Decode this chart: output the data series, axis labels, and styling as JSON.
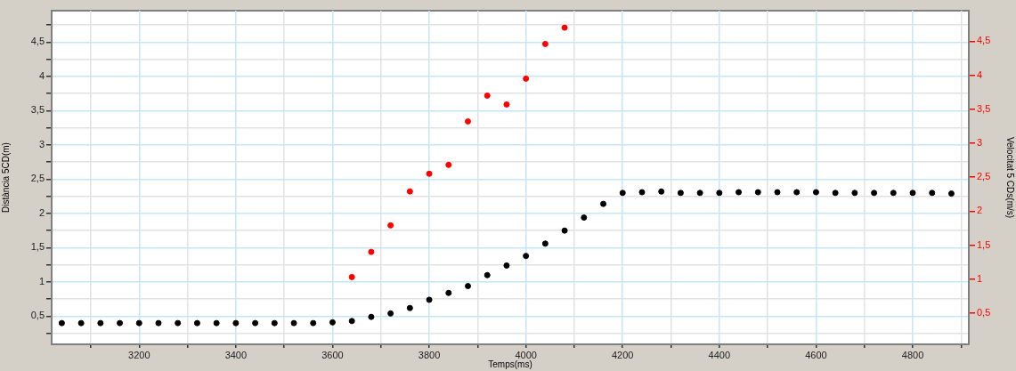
{
  "chart_data": {
    "type": "scatter",
    "xlabel": "Temps(ms)",
    "ylabel": "Distància 5CD(m)",
    "y2label": "Velocitat 5 CDs(m/s)",
    "xlim": [
      3019,
      4916
    ],
    "xticks": [
      {
        "value": 3100,
        "label": null
      },
      3200,
      {
        "value": 3300,
        "label": null
      },
      3400,
      {
        "value": 3500,
        "label": null
      },
      3600,
      {
        "value": 3700,
        "label": null
      },
      3800,
      {
        "value": 3900,
        "label": null
      },
      4000,
      {
        "value": 4100,
        "label": null
      },
      4200,
      {
        "value": 4300,
        "label": null
      },
      4400,
      {
        "value": 4500,
        "label": null
      },
      4600,
      {
        "value": 4700,
        "label": null
      },
      4800,
      {
        "value": 4900,
        "label": null
      }
    ],
    "ylim": [
      0.09,
      4.96
    ],
    "yticks": [
      {
        "value": 0.25,
        "label": null
      },
      {
        "value": 0.5,
        "label": "0,5"
      },
      {
        "value": 0.75,
        "label": null
      },
      1,
      {
        "value": 1.25,
        "label": null
      },
      {
        "value": 1.5,
        "label": "1,5"
      },
      {
        "value": 1.75,
        "label": null
      },
      2,
      {
        "value": 2.25,
        "label": null
      },
      {
        "value": 2.5,
        "label": "2,5"
      },
      {
        "value": 2.75,
        "label": null
      },
      3,
      {
        "value": 3.25,
        "label": null
      },
      {
        "value": 3.5,
        "label": "3,5"
      },
      {
        "value": 3.75,
        "label": null
      },
      4,
      {
        "value": 4.25,
        "label": null
      },
      {
        "value": 4.5,
        "label": "4,5"
      },
      {
        "value": 4.75,
        "label": null
      }
    ],
    "y2lim": [
      0.04,
      4.95
    ],
    "y2ticks": [
      {
        "value": 0.5,
        "label": "0,5"
      },
      1,
      {
        "value": 1.5,
        "label": "1,5"
      },
      2,
      {
        "value": 2.5,
        "label": "2,5"
      },
      3,
      {
        "value": 3.5,
        "label": "3,5"
      },
      4,
      {
        "value": 4.5,
        "label": "4,5"
      }
    ],
    "grid": true,
    "legend": false,
    "marker": "circle",
    "series": [
      {
        "color": "#000000",
        "x": [
          3040,
          3080,
          3120,
          3160,
          3200,
          3240,
          3280,
          3320,
          3360,
          3400,
          3440,
          3480,
          3520,
          3560,
          3600,
          3640,
          3680,
          3720,
          3760,
          3800,
          3840,
          3880,
          3920,
          3960,
          4000,
          4040,
          4080,
          4120,
          4160,
          4200,
          4240,
          4280,
          4320,
          4360,
          4400,
          4440,
          4480,
          4520,
          4560,
          4600,
          4640,
          4680,
          4720,
          4760,
          4800,
          4840,
          4880
        ],
        "values": [
          0.4,
          0.4,
          0.4,
          0.4,
          0.4,
          0.4,
          0.4,
          0.4,
          0.4,
          0.4,
          0.4,
          0.4,
          0.4,
          0.4,
          0.41,
          0.43,
          0.49,
          0.54,
          0.62,
          0.74,
          0.84,
          0.94,
          1.1,
          1.24,
          1.38,
          1.56,
          1.75,
          1.94,
          2.14,
          2.3,
          2.31,
          2.32,
          2.3,
          2.3,
          2.3,
          2.31,
          2.31,
          2.31,
          2.31,
          2.31,
          2.3,
          2.3,
          2.3,
          2.3,
          2.3,
          2.3,
          2.29
        ]
      },
      {
        "color": "#ff0000",
        "axis": "y2",
        "x": [
          3640,
          3680,
          3720,
          3760,
          3800,
          3840,
          3880,
          3920,
          3960,
          4000,
          4040,
          4080
        ],
        "values": [
          1.03,
          1.4,
          1.79,
          2.29,
          2.55,
          2.68,
          3.32,
          3.7,
          3.57,
          3.95,
          4.46,
          4.7
        ]
      }
    ]
  }
}
